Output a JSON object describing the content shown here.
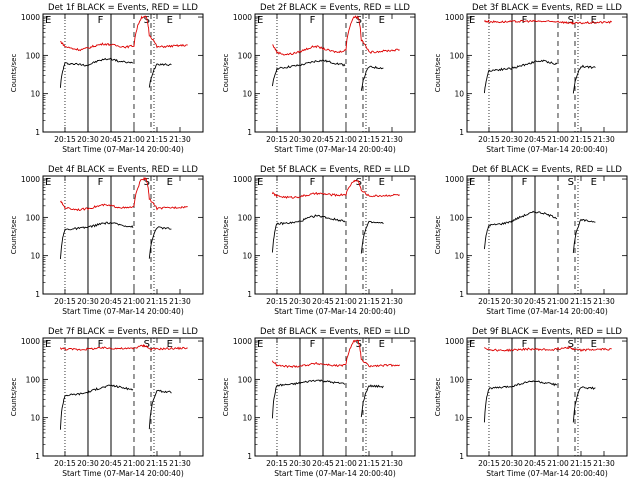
{
  "figure": {
    "ytick_labels": [
      "1",
      "10",
      "100",
      "1000"
    ],
    "xtick_labels": [
      "20:15",
      "20:30",
      "20:45",
      "21:00",
      "21:15",
      "21:30"
    ],
    "marker_letters": [
      "E",
      "F",
      "S",
      "E"
    ],
    "colors": {
      "events": "#000000",
      "lld": "#dd0000"
    }
  },
  "chart_data": [
    {
      "type": "line",
      "title": "Det 1f BLACK = Events, RED = LLD",
      "xlabel": "Start Time (07-Mar-14 20:00:40)",
      "ylabel": "Counts/sec",
      "ylim": [
        1,
        1200
      ],
      "yscale": "log",
      "x": [
        "20:12",
        "20:15",
        "20:20",
        "20:25",
        "20:30",
        "20:35",
        "20:40",
        "20:45",
        "20:50",
        "20:55",
        "21:00",
        "21:05",
        "21:08",
        "21:10",
        "21:15",
        "21:20",
        "21:25",
        "21:30",
        "21:35"
      ],
      "series": [
        {
          "name": "Events",
          "color": "#000000",
          "values": [
            15,
            62,
            60,
            58,
            55,
            68,
            78,
            82,
            70,
            66,
            62,
            null,
            null,
            15,
            60,
            58,
            56,
            null,
            null
          ]
        },
        {
          "name": "LLD",
          "color": "#dd0000",
          "values": [
            230,
            170,
            150,
            140,
            155,
            180,
            200,
            190,
            175,
            165,
            180,
            1000,
            1000,
            340,
            165,
            170,
            175,
            180,
            185
          ]
        }
      ]
    },
    {
      "type": "line",
      "title": "Det 2f BLACK = Events, RED = LLD",
      "xlabel": "Start Time (07-Mar-14 20:00:40)",
      "ylabel": "Counts/sec",
      "ylim": [
        1,
        1200
      ],
      "yscale": "log",
      "x": [
        "20:12",
        "20:15",
        "20:20",
        "20:25",
        "20:30",
        "20:35",
        "20:40",
        "20:45",
        "20:50",
        "20:55",
        "21:00",
        "21:05",
        "21:08",
        "21:10",
        "21:15",
        "21:20",
        "21:25",
        "21:30",
        "21:35"
      ],
      "series": [
        {
          "name": "Events",
          "color": "#000000",
          "values": [
            15,
            45,
            48,
            52,
            55,
            62,
            70,
            74,
            66,
            60,
            55,
            null,
            null,
            12,
            50,
            48,
            46,
            null,
            null
          ]
        },
        {
          "name": "LLD",
          "color": "#dd0000",
          "values": [
            190,
            120,
            105,
            110,
            125,
            150,
            175,
            150,
            130,
            120,
            140,
            1000,
            1000,
            250,
            120,
            125,
            130,
            135,
            140
          ]
        }
      ]
    },
    {
      "type": "line",
      "title": "Det 3f BLACK = Events, RED = LLD",
      "xlabel": "Start Time (07-Mar-14 20:00:40)",
      "ylabel": "Counts/sec",
      "ylim": [
        1,
        1200
      ],
      "yscale": "log",
      "x": [
        "20:12",
        "20:15",
        "20:20",
        "20:25",
        "20:30",
        "20:35",
        "20:40",
        "20:45",
        "20:50",
        "20:55",
        "21:00",
        "21:05",
        "21:08",
        "21:10",
        "21:15",
        "21:20",
        "21:25",
        "21:30",
        "21:35"
      ],
      "series": [
        {
          "name": "Events",
          "color": "#000000",
          "values": [
            10,
            40,
            42,
            44,
            46,
            52,
            60,
            68,
            72,
            65,
            58,
            null,
            null,
            10,
            52,
            50,
            48,
            null,
            null
          ]
        },
        {
          "name": "LLD",
          "color": "#dd0000",
          "values": [
            780,
            760,
            750,
            750,
            760,
            770,
            780,
            780,
            770,
            760,
            770,
            720,
            700,
            680,
            700,
            710,
            720,
            730,
            740
          ]
        }
      ]
    },
    {
      "type": "line",
      "title": "Det 4f BLACK = Events, RED = LLD",
      "xlabel": "Start Time (07-Mar-14 20:00:40)",
      "ylabel": "Counts/sec",
      "ylim": [
        1,
        1200
      ],
      "yscale": "log",
      "x": [
        "20:12",
        "20:15",
        "20:20",
        "20:25",
        "20:30",
        "20:35",
        "20:40",
        "20:45",
        "20:50",
        "20:55",
        "21:00",
        "21:05",
        "21:08",
        "21:10",
        "21:15",
        "21:20",
        "21:25",
        "21:30",
        "21:35"
      ],
      "series": [
        {
          "name": "Events",
          "color": "#000000",
          "values": [
            8,
            48,
            50,
            52,
            55,
            62,
            70,
            72,
            65,
            60,
            56,
            null,
            null,
            8,
            55,
            52,
            50,
            null,
            null
          ]
        },
        {
          "name": "LLD",
          "color": "#dd0000",
          "values": [
            260,
            180,
            165,
            160,
            170,
            190,
            210,
            200,
            185,
            175,
            190,
            1000,
            1000,
            300,
            170,
            175,
            180,
            185,
            190
          ]
        }
      ]
    },
    {
      "type": "line",
      "title": "Det 5f BLACK = Events, RED = LLD",
      "xlabel": "Start Time (07-Mar-14 20:00:40)",
      "ylabel": "Counts/sec",
      "ylim": [
        1,
        1200
      ],
      "yscale": "log",
      "x": [
        "20:12",
        "20:15",
        "20:20",
        "20:25",
        "20:30",
        "20:35",
        "20:40",
        "20:45",
        "20:50",
        "20:55",
        "21:00",
        "21:05",
        "21:08",
        "21:10",
        "21:15",
        "21:20",
        "21:25",
        "21:30",
        "21:35"
      ],
      "series": [
        {
          "name": "Events",
          "color": "#000000",
          "values": [
            12,
            68,
            70,
            72,
            78,
            95,
            110,
            105,
            92,
            85,
            80,
            null,
            null,
            12,
            75,
            72,
            70,
            null,
            null
          ]
        },
        {
          "name": "LLD",
          "color": "#dd0000",
          "values": [
            430,
            360,
            340,
            330,
            350,
            380,
            420,
            410,
            390,
            380,
            400,
            900,
            900,
            500,
            360,
            365,
            370,
            380,
            390
          ]
        }
      ]
    },
    {
      "type": "line",
      "title": "Det 6f BLACK = Events, RED = LLD",
      "xlabel": "Start Time (07-Mar-14 20:00:40)",
      "ylabel": "Counts/sec",
      "ylim": [
        1,
        1200
      ],
      "yscale": "log",
      "x": [
        "20:12",
        "20:15",
        "20:20",
        "20:25",
        "20:30",
        "20:35",
        "20:40",
        "20:45",
        "20:50",
        "20:55",
        "21:00",
        "21:05",
        "21:08",
        "21:10",
        "21:15",
        "21:20",
        "21:25",
        "21:30",
        "21:35"
      ],
      "series": [
        {
          "name": "Events",
          "color": "#000000",
          "values": [
            15,
            62,
            65,
            70,
            80,
            100,
            120,
            140,
            130,
            110,
            95,
            null,
            null,
            12,
            85,
            80,
            78,
            null,
            null
          ]
        },
        {
          "name": "LLD",
          "color": "#dd0000",
          "values": [
            null,
            null,
            null,
            null,
            null,
            null,
            null,
            null,
            null,
            null,
            null,
            null,
            null,
            null,
            null,
            null,
            null,
            null,
            null
          ]
        }
      ]
    },
    {
      "type": "line",
      "title": "Det 7f BLACK = Events, RED = LLD",
      "xlabel": "Start Time (07-Mar-14 20:00:40)",
      "ylabel": "Counts/sec",
      "ylim": [
        1,
        1200
      ],
      "yscale": "log",
      "x": [
        "20:12",
        "20:15",
        "20:20",
        "20:25",
        "20:30",
        "20:35",
        "20:40",
        "20:45",
        "20:50",
        "20:55",
        "21:00",
        "21:05",
        "21:08",
        "21:10",
        "21:15",
        "21:20",
        "21:25",
        "21:30",
        "21:35"
      ],
      "series": [
        {
          "name": "Events",
          "color": "#000000",
          "values": [
            5,
            38,
            40,
            42,
            46,
            55,
            62,
            70,
            64,
            58,
            54,
            null,
            null,
            5,
            50,
            48,
            46,
            null,
            null
          ]
        },
        {
          "name": "LLD",
          "color": "#dd0000",
          "values": [
            650,
            620,
            610,
            600,
            620,
            640,
            660,
            650,
            640,
            630,
            650,
            750,
            750,
            620,
            620,
            630,
            640,
            650,
            660
          ]
        }
      ]
    },
    {
      "type": "line",
      "title": "Det 8f BLACK = Events, RED = LLD",
      "xlabel": "Start Time (07-Mar-14 20:00:40)",
      "ylabel": "Counts/sec",
      "ylim": [
        1,
        1200
      ],
      "yscale": "log",
      "x": [
        "20:12",
        "20:15",
        "20:20",
        "20:25",
        "20:30",
        "20:35",
        "20:40",
        "20:45",
        "20:50",
        "20:55",
        "21:00",
        "21:05",
        "21:08",
        "21:10",
        "21:15",
        "21:20",
        "21:25",
        "21:30",
        "21:35"
      ],
      "series": [
        {
          "name": "Events",
          "color": "#000000",
          "values": [
            10,
            70,
            72,
            75,
            80,
            88,
            95,
            92,
            85,
            80,
            78,
            null,
            null,
            10,
            68,
            66,
            64,
            null,
            null
          ]
        },
        {
          "name": "LLD",
          "color": "#dd0000",
          "values": [
            300,
            230,
            220,
            215,
            225,
            240,
            260,
            250,
            235,
            225,
            240,
            1000,
            1000,
            320,
            220,
            225,
            230,
            235,
            240
          ]
        }
      ]
    },
    {
      "type": "line",
      "title": "Det 9f BLACK = Events, RED = LLD",
      "xlabel": "Start Time (07-Mar-14 20:00:40)",
      "ylabel": "Counts/sec",
      "ylim": [
        1,
        1200
      ],
      "yscale": "log",
      "x": [
        "20:12",
        "20:15",
        "20:20",
        "20:25",
        "20:30",
        "20:35",
        "20:40",
        "20:45",
        "20:50",
        "20:55",
        "21:00",
        "21:05",
        "21:08",
        "21:10",
        "21:15",
        "21:20",
        "21:25",
        "21:30",
        "21:35"
      ],
      "series": [
        {
          "name": "Events",
          "color": "#000000",
          "values": [
            8,
            58,
            60,
            62,
            66,
            75,
            85,
            90,
            82,
            76,
            72,
            null,
            null,
            8,
            62,
            60,
            58,
            null,
            null
          ]
        },
        {
          "name": "LLD",
          "color": "#dd0000",
          "values": [
            680,
            600,
            580,
            570,
            580,
            600,
            620,
            610,
            600,
            590,
            620,
            680,
            680,
            600,
            580,
            590,
            600,
            610,
            620
          ]
        }
      ]
    }
  ]
}
